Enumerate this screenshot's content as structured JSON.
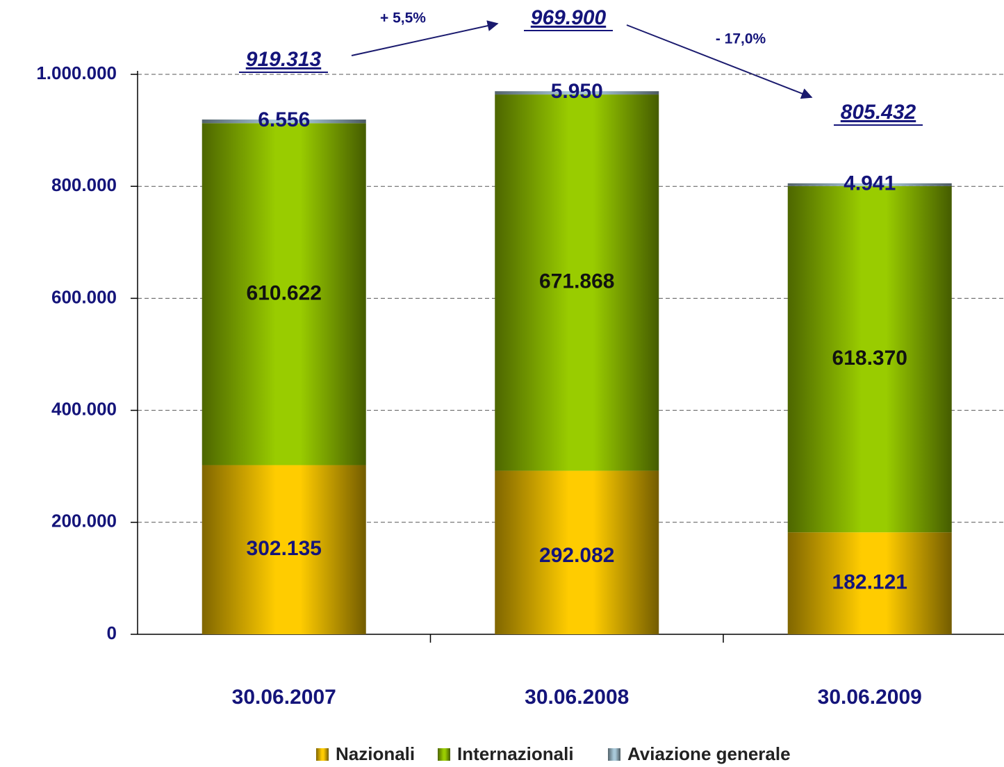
{
  "chart_data": {
    "type": "stacked_bar",
    "categories": [
      "30.06.2007",
      "30.06.2008",
      "30.06.2009"
    ],
    "series": [
      {
        "name": "Nazionali",
        "color": "#ffcc00",
        "values": [
          302135,
          292082,
          182121
        ],
        "value_labels": [
          "302.135",
          "292.082",
          "182.121"
        ]
      },
      {
        "name": "Internazionali",
        "color": "#99cc00",
        "values": [
          610622,
          671868,
          618370
        ],
        "value_labels": [
          "610.622",
          "671.868",
          "618.370"
        ]
      },
      {
        "name": "Aviazione generale",
        "color": "#a8c8d8",
        "values": [
          6556,
          5950,
          4941
        ],
        "value_labels": [
          "6.556",
          "5.950",
          "4.941"
        ]
      }
    ],
    "totals": {
      "values": [
        919313,
        969900,
        805432
      ],
      "value_labels": [
        "919.313",
        "969.900",
        "805.432"
      ]
    },
    "changes": {
      "values": [
        5.5,
        -17.0
      ],
      "value_labels": [
        "+ 5,5%",
        "- 17,0%"
      ]
    },
    "ylim": [
      0,
      1000000
    ],
    "yticks": [
      0,
      {
        "value": 200000,
        "label": "200.000"
      },
      {
        "value": 400000,
        "label": "400.000"
      },
      {
        "value": 600000,
        "label": "600.000"
      },
      {
        "value": 800000,
        "label": "800.000"
      },
      {
        "value": 1000000,
        "label": "1.000.000"
      }
    ],
    "grid": true,
    "legend": "bottom"
  }
}
